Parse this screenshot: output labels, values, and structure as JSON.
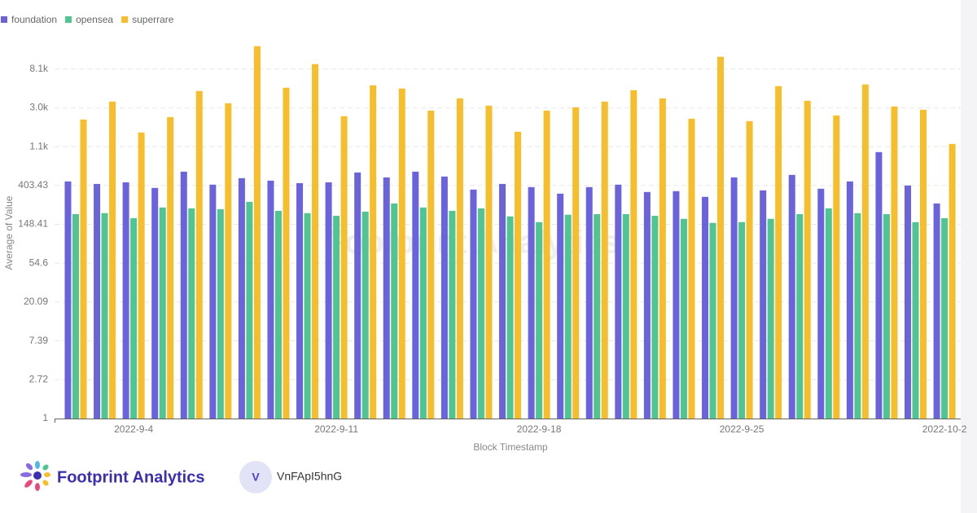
{
  "chart_data": {
    "type": "bar",
    "watermark": "Footprint Analytics",
    "x_label": "Block Timestamp",
    "y_label": "Average of Value",
    "log_scale": true,
    "grid": true,
    "legend_position": "top-left",
    "categories": [
      null,
      null,
      "2022-9-4",
      null,
      null,
      null,
      null,
      null,
      null,
      "2022-9-11",
      null,
      null,
      null,
      null,
      null,
      null,
      "2022-9-18",
      null,
      null,
      null,
      null,
      null,
      null,
      "2022-9-25",
      null,
      null,
      null,
      null,
      null,
      null,
      "2022-10-2"
    ],
    "ylim": [
      1,
      22026
    ],
    "yticks": [
      1,
      {
        "value": 2.718,
        "label": "2.72"
      },
      {
        "value": 7.389,
        "label": "7.39"
      },
      {
        "value": 20.086,
        "label": "20.09"
      },
      {
        "value": 54.598,
        "label": "54.6"
      },
      {
        "value": 148.413,
        "label": "148.41"
      },
      {
        "value": 403.429,
        "label": "403.43"
      },
      {
        "value": 1096.633,
        "label": "1.1k"
      },
      {
        "value": 2980.958,
        "label": "3.0k"
      },
      {
        "value": 8103.084,
        "label": "8.1k"
      }
    ],
    "series": [
      {
        "name": "foundation",
        "color": "#6a63dc",
        "values": [
          448,
          420,
          438,
          379,
          576,
          412,
          487,
          457,
          429,
          438,
          564,
          497,
          576,
          508,
          363,
          420,
          387,
          327,
          387,
          412,
          341,
          349,
          301,
          497,
          356,
          530,
          371,
          448,
          953,
          403,
          254
        ]
      },
      {
        "name": "opensea",
        "color": "#50c592",
        "values": [
          193,
          198,
          174,
          229,
          224,
          219,
          265,
          210,
          198,
          185,
          206,
          254,
          229,
          210,
          224,
          182,
          157,
          190,
          193,
          193,
          185,
          171,
          154,
          157,
          171,
          193,
          224,
          198,
          193,
          157,
          174
        ]
      },
      {
        "name": "superrare",
        "color": "#f6be2c",
        "values": [
          2206,
          3499,
          1577,
          2349,
          4597,
          3354,
          14574,
          4999,
          9181,
          2400,
          5324,
          4895,
          2776,
          3804,
          3151,
          1610,
          2776,
          3020,
          3499,
          4692,
          3804,
          2253,
          11100,
          2116,
          5214,
          3572,
          2450,
          5437,
          3085,
          2835,
          1175
        ]
      }
    ]
  },
  "footer": {
    "brand": "Footprint Analytics",
    "avatar": "V",
    "user": "VnFApI5hnG"
  }
}
